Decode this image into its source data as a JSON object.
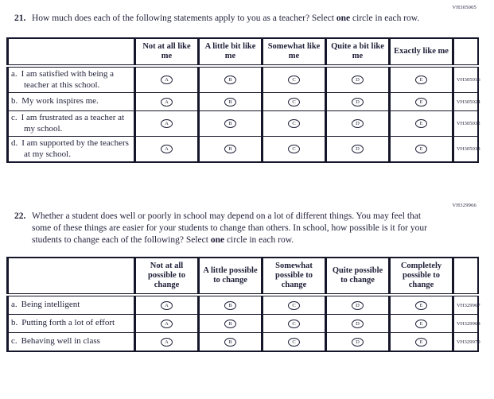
{
  "colors": {
    "ink": "#1f1f38"
  },
  "option_letters": [
    "A",
    "B",
    "C",
    "D",
    "E"
  ],
  "q21": {
    "code": "VH305005",
    "number": "21.",
    "text_before": "How much does each of the following statements apply to you as a teacher? Select ",
    "text_bold": "one",
    "text_after": " circle in each row.",
    "columns": [
      "Not at all like me",
      "A little bit like me",
      "Somewhat like me",
      "Quite a bit like me",
      "Exactly like me"
    ],
    "rows": [
      {
        "letter": "a.",
        "text": "I am satisfied with being a teacher at this school.",
        "code": "VH305016"
      },
      {
        "letter": "b.",
        "text": "My work inspires me.",
        "code": "VH305024"
      },
      {
        "letter": "c.",
        "text": "I am frustrated as a teacher at my school.",
        "code": "VH305032"
      },
      {
        "letter": "d.",
        "text": "I am supported by the teachers at my school.",
        "code": "VH305033"
      }
    ]
  },
  "q22": {
    "code": "VH329966",
    "number": "22.",
    "text_before": "Whether a student does well or poorly in school may depend on a lot of different things. You may feel that some of these things are easier for your students to change than others. In school, how possible is it for your students to change each of the following? Select ",
    "text_bold": "one",
    "text_after": " circle in each row.",
    "columns": [
      "Not at all possible to change",
      "A little possible to change",
      "Somewhat possible to change",
      "Quite possible to change",
      "Completely possible to change"
    ],
    "rows": [
      {
        "letter": "a.",
        "text": "Being intelligent",
        "code": "VH329967"
      },
      {
        "letter": "b.",
        "text": "Putting forth a lot of effort",
        "code": "VH329968"
      },
      {
        "letter": "c.",
        "text": "Behaving well in class",
        "code": "VH329970"
      }
    ]
  }
}
